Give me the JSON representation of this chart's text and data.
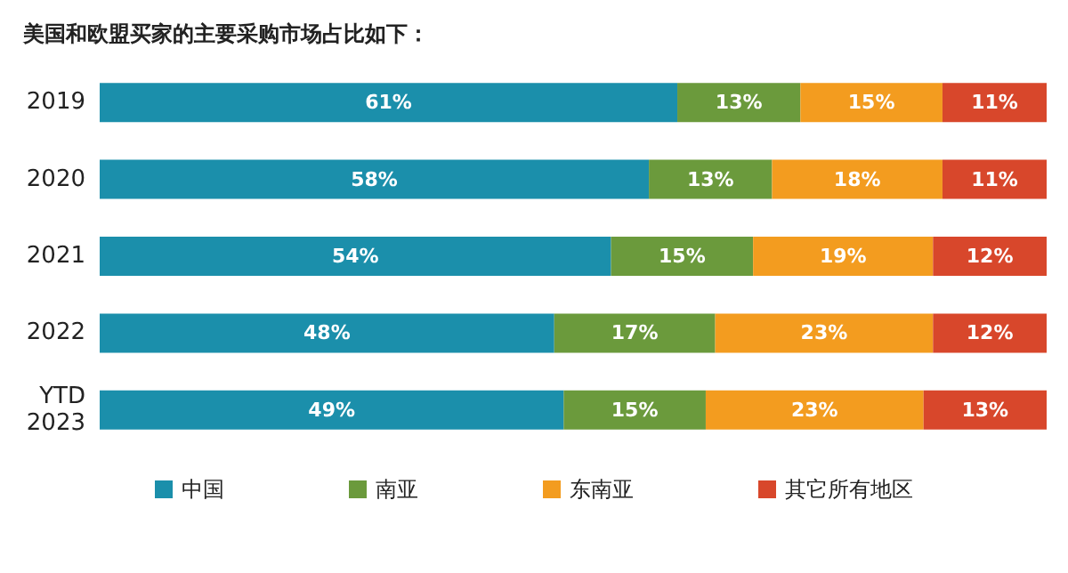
{
  "chart_data": {
    "type": "bar",
    "title": "美国和欧盟买家的主要采购市场占比如下：",
    "orientation": "horizontal",
    "stacked": true,
    "categories": [
      "2019",
      "2020",
      "2021",
      "2022",
      "YTD 2023"
    ],
    "xlim": [
      0,
      100
    ],
    "tick_labels": "y",
    "legend": "bottom",
    "grid": false,
    "series": [
      {
        "name": "中国",
        "color": "#1b8fab",
        "values": [
          61,
          58,
          54,
          48,
          49
        ],
        "value_labels": [
          "61%",
          "58%",
          "54%",
          "48%",
          "49%"
        ]
      },
      {
        "name": "南亚",
        "color": "#6b9a3c",
        "values": [
          13,
          13,
          15,
          17,
          15
        ],
        "value_labels": [
          "13%",
          "13%",
          "15%",
          "17%",
          "15%"
        ]
      },
      {
        "name": "东南亚",
        "color": "#f39c1f",
        "values": [
          15,
          18,
          19,
          23,
          23
        ],
        "value_labels": [
          "15%",
          "18%",
          "19%",
          "23%",
          "23%"
        ]
      },
      {
        "name": "其它所有地区",
        "color": "#d8472b",
        "values": [
          11,
          11,
          12,
          12,
          13
        ],
        "value_labels": [
          "11%",
          "11%",
          "12%",
          "12%",
          "13%"
        ]
      }
    ]
  }
}
